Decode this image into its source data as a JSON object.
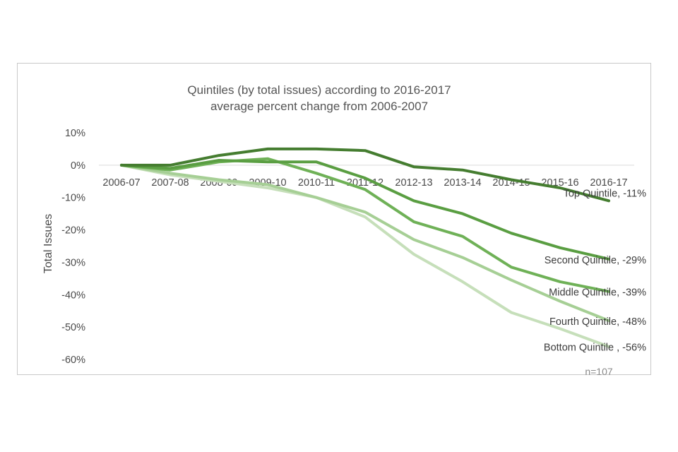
{
  "chart_data": {
    "type": "line",
    "title": [
      "Quintiles (by total issues) according to 2016-2017",
      "average percent change from 2006-2007"
    ],
    "xlabel": "",
    "ylabel": "Total Issues",
    "categories": [
      "2006-07",
      "2007-08",
      "2008-09",
      "2009-10",
      "2010-11",
      "2011-12",
      "2012-13",
      "2013-14",
      "2014-15",
      "2015-16",
      "2016-17"
    ],
    "y_ticks": [
      10,
      0,
      -10,
      -20,
      -30,
      -40,
      -50,
      -60
    ],
    "y_tick_labels": [
      "10%",
      "0%",
      "-10%",
      "-20%",
      "-30%",
      "-40%",
      "-50%",
      "-60%"
    ],
    "ylim": [
      -60,
      10
    ],
    "grid": false,
    "series": [
      {
        "name": "Bottom Quintile",
        "label": "Bottom Quintile , -56%",
        "color": "#c6dfba",
        "values": [
          0,
          -3,
          -5,
          -7,
          -10,
          -16,
          -27.5,
          -36,
          -45.5,
          -50.5,
          -56
        ]
      },
      {
        "name": "Fourth Quintile",
        "label": "Fourth Quintile, -48%",
        "color": "#a6cf95",
        "values": [
          0,
          -2.5,
          -4.5,
          -6,
          -10,
          -14.5,
          -23,
          -28.5,
          -35.5,
          -42,
          -48
        ]
      },
      {
        "name": "Middle Quintile",
        "label": "Middle Quintile, -39%",
        "color": "#6fb157",
        "values": [
          0,
          -1.5,
          1,
          2,
          -2.5,
          -7.5,
          -17.5,
          -22,
          -31.5,
          -36,
          -39
        ]
      },
      {
        "name": "Second Quintile",
        "label": "Second Quintile, -29%",
        "color": "#5a9e42",
        "values": [
          0,
          -1,
          1.5,
          1,
          1,
          -4,
          -11,
          -15,
          -21,
          -25.5,
          -29
        ]
      },
      {
        "name": "Top Quintile",
        "label": "Top Quintile, -11%",
        "color": "#457d30",
        "values": [
          0,
          0,
          3,
          5,
          5,
          4.5,
          -0.5,
          -1.5,
          -4.5,
          -7,
          -11
        ]
      }
    ],
    "note": "n=107"
  }
}
